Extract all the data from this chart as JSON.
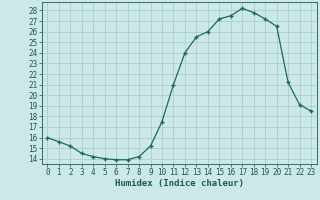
{
  "x": [
    0,
    1,
    2,
    3,
    4,
    5,
    6,
    7,
    8,
    9,
    10,
    11,
    12,
    13,
    14,
    15,
    16,
    17,
    18,
    19,
    20,
    21,
    22,
    23
  ],
  "y": [
    16.0,
    15.6,
    15.2,
    14.5,
    14.2,
    14.0,
    13.9,
    13.9,
    14.2,
    15.2,
    17.5,
    21.0,
    24.0,
    25.5,
    26.0,
    27.2,
    27.5,
    28.2,
    27.8,
    27.2,
    26.5,
    21.2,
    19.1,
    18.5
  ],
  "xlabel": "Humidex (Indice chaleur)",
  "xticks": [
    0,
    1,
    2,
    3,
    4,
    5,
    6,
    7,
    8,
    9,
    10,
    11,
    12,
    13,
    14,
    15,
    16,
    17,
    18,
    19,
    20,
    21,
    22,
    23
  ],
  "yticks": [
    14,
    15,
    16,
    17,
    18,
    19,
    20,
    21,
    22,
    23,
    24,
    25,
    26,
    27,
    28
  ],
  "ylim": [
    13.5,
    28.8
  ],
  "xlim": [
    -0.5,
    23.5
  ],
  "line_color": "#1a6b5a",
  "marker": "+",
  "bg_color": "#cce8e8",
  "grid_color": "#aad0d0",
  "tick_label_color": "#1a5c4a",
  "xlabel_color": "#1a5c4a",
  "font_family": "monospace",
  "tick_fontsize": 5.5,
  "xlabel_fontsize": 6.5
}
